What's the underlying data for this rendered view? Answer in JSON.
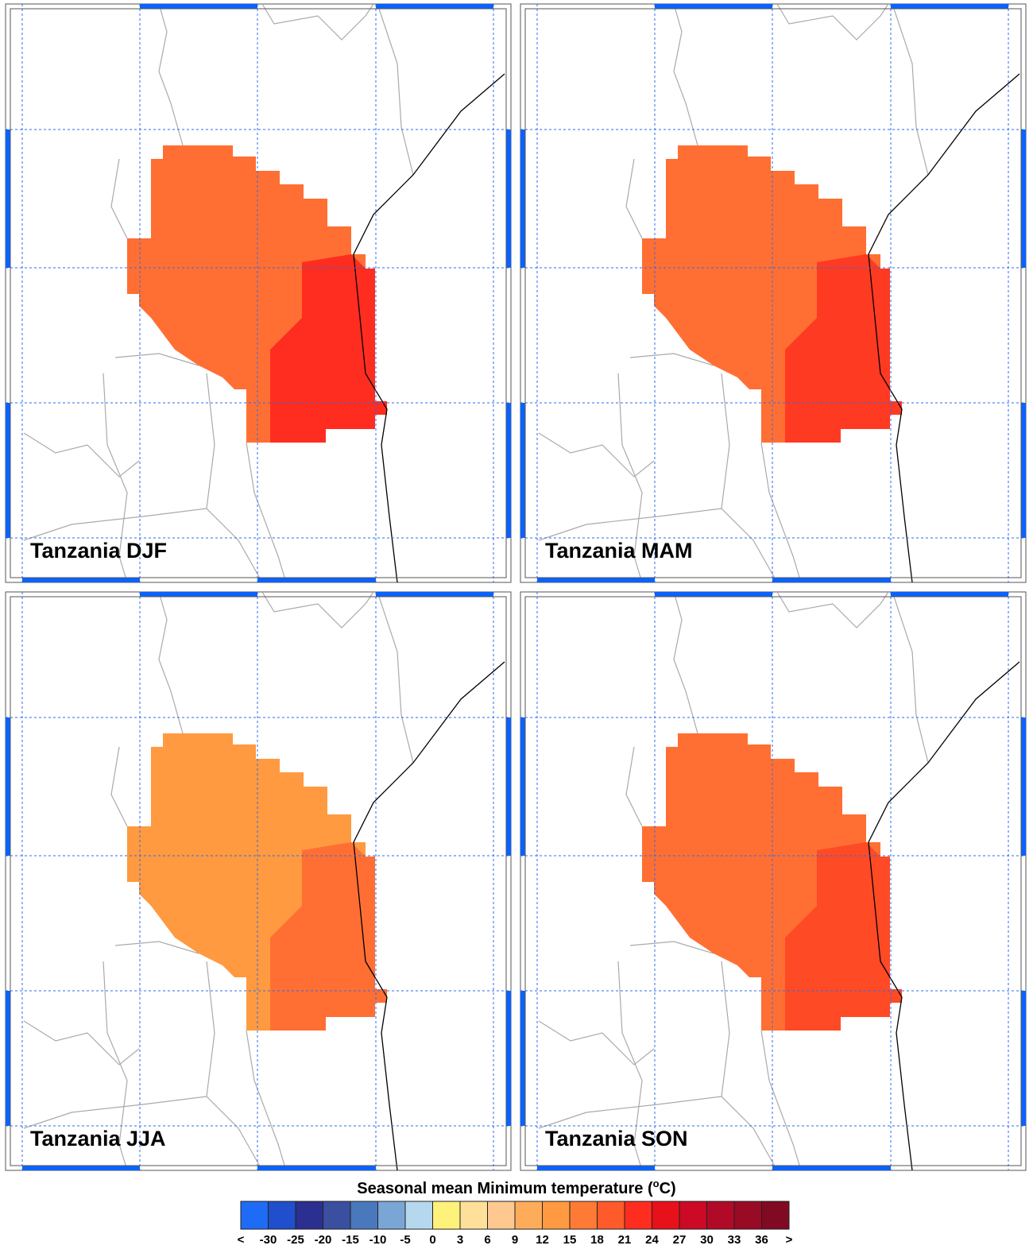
{
  "panels": [
    {
      "title": "Tanzania DJF",
      "fill": "#ff6f33",
      "east_fill": "#ff2d1f"
    },
    {
      "title": "Tanzania MAM",
      "fill": "#ff6f33",
      "east_fill": "#ff3a22"
    },
    {
      "title": "Tanzania JJA",
      "fill": "#ff9a40",
      "east_fill": "#ff6f33"
    },
    {
      "title": "Tanzania SON",
      "fill": "#ff6f33",
      "east_fill": "#ff4a26"
    }
  ],
  "colorbar": {
    "title_prefix": "Seasonal mean Minimum temperature (",
    "title_sup": "o",
    "title_suffix": "C)",
    "labels": [
      "<",
      "-30",
      "-25",
      "-20",
      "-15",
      "-10",
      "-5",
      "0",
      "3",
      "6",
      "9",
      "12",
      "15",
      "18",
      "21",
      "24",
      "27",
      "30",
      "33",
      "36",
      ">"
    ],
    "colors": [
      "#1e6cf5",
      "#1f4fcc",
      "#2b2f8f",
      "#3a4fa0",
      "#4a78bd",
      "#7aa6d6",
      "#b5d8ee",
      "#fff27a",
      "#ffe09a",
      "#ffc890",
      "#ffac5a",
      "#ff9a40",
      "#ff7a35",
      "#ff5a2a",
      "#ff2d1f",
      "#e8101a",
      "#cc0a25",
      "#b00a28",
      "#990a25",
      "#800a22"
    ]
  }
}
